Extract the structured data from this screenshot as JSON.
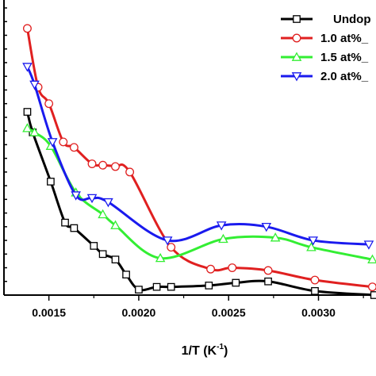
{
  "chart_data": {
    "type": "line",
    "title": "",
    "xlabel": "1/T (K",
    "xlabel_sup": "-1",
    "xlabel_close": ")",
    "ylabel": "",
    "xlim": [
      0.00125,
      0.00332
    ],
    "ylim": [
      0,
      21
    ],
    "xticks": [
      0.0015,
      0.002,
      0.0025,
      0.003
    ],
    "xtick_labels": [
      "0.0015",
      "0.0020",
      "0.0025",
      "0.0030"
    ],
    "grid": false,
    "legend_position": "top-right",
    "series": [
      {
        "name": "Undop",
        "color": "#000000",
        "marker": "square",
        "x": [
          0.00138,
          0.00141,
          0.00151,
          0.00159,
          0.00164,
          0.00175,
          0.0018,
          0.00187,
          0.00193,
          0.002,
          0.0021,
          0.00218,
          0.00239,
          0.00254,
          0.00272,
          0.00298,
          0.00331
        ],
        "y": [
          13.4,
          11.9,
          8.3,
          5.3,
          4.9,
          3.6,
          3.0,
          2.6,
          1.5,
          0.4,
          0.6,
          0.6,
          0.7,
          0.9,
          1.0,
          0.3,
          0.0
        ]
      },
      {
        "name": "1.0 at%_",
        "color": "#e02020",
        "marker": "circle",
        "x": [
          0.00138,
          0.00144,
          0.0015,
          0.00158,
          0.00164,
          0.00174,
          0.0018,
          0.00187,
          0.00195,
          0.00218,
          0.0024,
          0.00252,
          0.00272,
          0.00298,
          0.0033
        ],
        "y": [
          19.5,
          15.2,
          14.0,
          11.2,
          10.8,
          9.6,
          9.5,
          9.4,
          9.0,
          3.5,
          1.9,
          2.0,
          1.8,
          1.1,
          0.6
        ]
      },
      {
        "name": "1.5 at%_",
        "color": "#33ee33",
        "marker": "triangle-up",
        "x": [
          0.00138,
          0.00142,
          0.00151,
          0.00165,
          0.0018,
          0.00187,
          0.00212,
          0.00247,
          0.00276,
          0.00296,
          0.0033
        ],
        "y": [
          12.2,
          11.9,
          10.9,
          7.5,
          5.9,
          5.1,
          2.7,
          4.1,
          4.2,
          3.5,
          2.6
        ]
      },
      {
        "name": "2.0 at%_",
        "color": "#1a1aee",
        "marker": "triangle-down",
        "x": [
          0.00138,
          0.00142,
          0.00152,
          0.00165,
          0.00174,
          0.00183,
          0.00216,
          0.00246,
          0.00271,
          0.00297,
          0.00328
        ],
        "y": [
          16.7,
          15.4,
          11.2,
          7.3,
          7.1,
          6.8,
          4.0,
          5.1,
          5.0,
          4.0,
          3.7
        ]
      }
    ]
  }
}
